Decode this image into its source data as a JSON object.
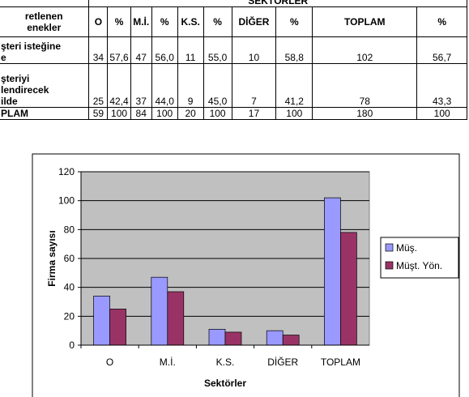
{
  "table": {
    "group_header": "SEKTÖRLER",
    "corner": [
      "retlenen",
      "enekler"
    ],
    "columns": [
      "O",
      "%",
      "M.İ.",
      "%",
      "K.S.",
      "%",
      "DİĞER",
      "%",
      "TOPLAM",
      "%"
    ],
    "rows": [
      {
        "label": [
          "şteri isteğine",
          "e"
        ],
        "cells": [
          "34",
          "57,6",
          "47",
          "56,0",
          "11",
          "55,0",
          "10",
          "58,8",
          "102",
          "56,7"
        ]
      },
      {
        "label": [
          "şteriyi",
          "lendirecek",
          "ilde"
        ],
        "cells": [
          "25",
          "42,4",
          "37",
          "44,0",
          "9",
          "45,0",
          "7",
          "41,2",
          "78",
          "43,3"
        ]
      },
      {
        "label": [
          "PLAM"
        ],
        "cells": [
          "59",
          "100",
          "84",
          "100",
          "20",
          "100",
          "17",
          "100",
          "180",
          "100"
        ]
      }
    ]
  },
  "chart_data": {
    "type": "bar",
    "x_label": "Sektörler",
    "y_label": "Firma sayısı",
    "categories": [
      "O",
      "M.İ.",
      "K.S.",
      "DİĞER",
      "TOPLAM"
    ],
    "series": [
      {
        "name": "Müş.",
        "color": "#9999ff",
        "values": [
          34,
          47,
          11,
          10,
          102
        ]
      },
      {
        "name": "Müşt. Yön.",
        "color": "#993366",
        "values": [
          25,
          37,
          9,
          7,
          78
        ]
      }
    ],
    "ylim": [
      0,
      120
    ],
    "yticks": [
      0,
      20,
      40,
      60,
      80,
      100,
      120
    ],
    "grid": true,
    "legend": "right"
  }
}
